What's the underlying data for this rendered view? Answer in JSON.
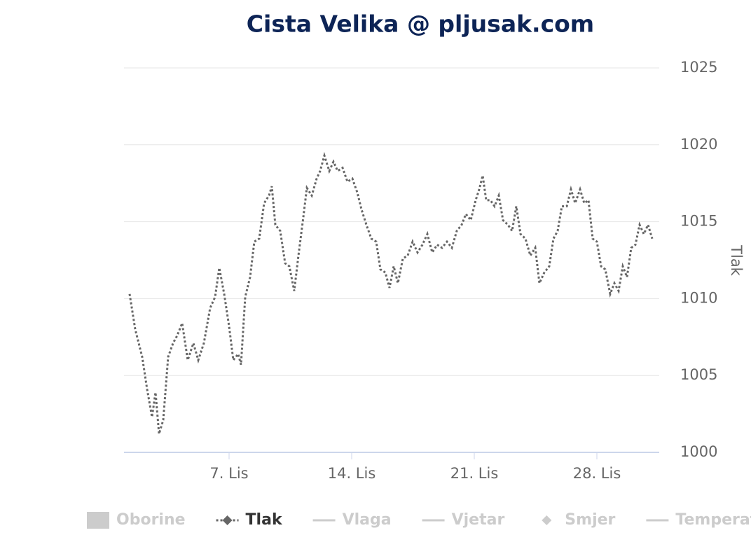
{
  "chart_data": {
    "type": "line",
    "title": "Cista Velika @ pljusak.com",
    "y_axis_label": "Tlak",
    "x": [
      1.32,
      1.64,
      2.04,
      2.32,
      2.6,
      2.8,
      3.0,
      3.24,
      3.52,
      3.8,
      4.04,
      4.32,
      4.64,
      4.96,
      5.24,
      5.56,
      5.92,
      6.2,
      6.44,
      6.72,
      7.0,
      7.24,
      7.52,
      7.68,
      7.92,
      8.2,
      8.44,
      8.72,
      9.0,
      9.28,
      9.44,
      9.64,
      9.92,
      10.2,
      10.44,
      10.72,
      10.96,
      11.24,
      11.44,
      11.72,
      12.0,
      12.2,
      12.44,
      12.72,
      12.96,
      13.2,
      13.48,
      13.76,
      14.04,
      14.32,
      14.56,
      14.84,
      15.12,
      15.4,
      15.64,
      15.92,
      16.16,
      16.4,
      16.64,
      16.92,
      17.2,
      17.48,
      17.76,
      18.04,
      18.32,
      18.6,
      18.88,
      19.16,
      19.44,
      19.72,
      20.0,
      20.28,
      20.52,
      20.8,
      21.08,
      21.28,
      21.48,
      21.68,
      21.92,
      22.16,
      22.4,
      22.64,
      22.92,
      23.16,
      23.4,
      23.64,
      23.92,
      24.2,
      24.48,
      24.72,
      25.0,
      25.28,
      25.52,
      25.76,
      26.0,
      26.28,
      26.52,
      26.76,
      27.04,
      27.28,
      27.52,
      27.76,
      28.0,
      28.24,
      28.48,
      28.76,
      29.0,
      29.24,
      29.48,
      29.72,
      29.96,
      30.2,
      30.44,
      30.68,
      30.92,
      31.16
    ],
    "series": [
      {
        "name": "Oborine",
        "symbol": "rect",
        "visible": false
      },
      {
        "name": "Tlak",
        "color": "#666666",
        "symbol": "diamond",
        "dash": "dotted",
        "visible": true,
        "values": [
          1010.3,
          1008.0,
          1006.2,
          1004.1,
          1002.3,
          1003.9,
          1001.2,
          1002.1,
          1006.2,
          1007.1,
          1007.6,
          1008.4,
          1006.0,
          1007.1,
          1006.0,
          1007.1,
          1009.4,
          1010.1,
          1012.0,
          1010.3,
          1008.2,
          1006.0,
          1006.4,
          1005.7,
          1010.1,
          1011.4,
          1013.7,
          1013.9,
          1016.2,
          1016.7,
          1017.3,
          1014.8,
          1014.4,
          1012.3,
          1012.1,
          1010.5,
          1012.8,
          1015.3,
          1017.2,
          1016.7,
          1017.8,
          1018.3,
          1019.3,
          1018.3,
          1018.9,
          1018.3,
          1018.5,
          1017.6,
          1017.8,
          1016.9,
          1015.8,
          1014.8,
          1013.9,
          1013.7,
          1011.9,
          1011.7,
          1010.7,
          1012.1,
          1011.0,
          1012.6,
          1012.8,
          1013.7,
          1013.0,
          1013.5,
          1014.2,
          1013.0,
          1013.5,
          1013.3,
          1013.7,
          1013.3,
          1014.4,
          1014.8,
          1015.5,
          1015.1,
          1016.4,
          1017.1,
          1018.0,
          1016.4,
          1016.4,
          1016.0,
          1016.7,
          1015.1,
          1014.8,
          1014.4,
          1016.0,
          1014.2,
          1013.9,
          1012.8,
          1013.3,
          1011.0,
          1011.7,
          1012.1,
          1013.9,
          1014.4,
          1016.0,
          1016.0,
          1017.1,
          1016.2,
          1017.1,
          1016.2,
          1016.4,
          1013.9,
          1013.7,
          1012.1,
          1011.9,
          1010.3,
          1011.0,
          1010.5,
          1012.1,
          1011.4,
          1013.3,
          1013.5,
          1014.8,
          1014.2,
          1014.8,
          1013.9
        ]
      },
      {
        "name": "Vlaga",
        "symbol": "line",
        "visible": false
      },
      {
        "name": "Vjetar",
        "symbol": "line",
        "visible": false
      },
      {
        "name": "Smjer",
        "symbol": "diamond",
        "visible": false
      },
      {
        "name": "Temperatura",
        "symbol": "line",
        "visible": false
      }
    ],
    "xlim": [
      1,
      31.56
    ],
    "xticks": [
      {
        "value": 7,
        "label": "7. Lis"
      },
      {
        "value": 14,
        "label": "14. Lis"
      },
      {
        "value": 21,
        "label": "21. Lis"
      },
      {
        "value": 28,
        "label": "28. Lis"
      }
    ],
    "ylim": [
      1000,
      1025
    ],
    "yticks": [
      1000,
      1005,
      1010,
      1015,
      1020,
      1025
    ],
    "grid": true,
    "y_axis_side": "right"
  }
}
